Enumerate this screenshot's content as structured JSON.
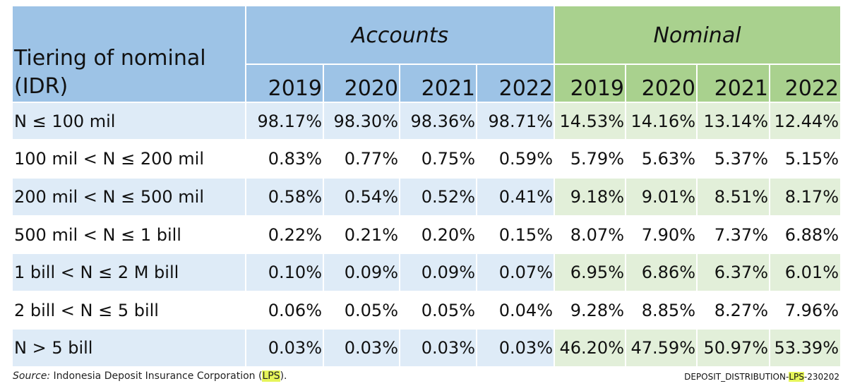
{
  "chart_data": {
    "type": "table",
    "header": {
      "tier_title": "Tiering of nominal (IDR)",
      "groups": [
        "Accounts",
        "Nominal"
      ],
      "years": [
        "2019",
        "2020",
        "2021",
        "2022"
      ]
    },
    "rows": [
      {
        "label": "N ≤ 100 mil",
        "accounts": [
          "98.17%",
          "98.30%",
          "98.36%",
          "98.71%"
        ],
        "nominal": [
          "14.53%",
          "14.16%",
          "13.14%",
          "12.44%"
        ]
      },
      {
        "label": "100 mil < N ≤ 200 mil",
        "accounts": [
          "0.83%",
          "0.77%",
          "0.75%",
          "0.59%"
        ],
        "nominal": [
          "5.79%",
          "5.63%",
          "5.37%",
          "5.15%"
        ]
      },
      {
        "label": "200 mil < N ≤ 500 mil",
        "accounts": [
          "0.58%",
          "0.54%",
          "0.52%",
          "0.41%"
        ],
        "nominal": [
          "9.18%",
          "9.01%",
          "8.51%",
          "8.17%"
        ]
      },
      {
        "label": "500 mil < N ≤ 1 bill",
        "accounts": [
          "0.22%",
          "0.21%",
          "0.20%",
          "0.15%"
        ],
        "nominal": [
          "8.07%",
          "7.90%",
          "7.37%",
          "6.88%"
        ]
      },
      {
        "label": "1 bill < N ≤ 2 M bill",
        "accounts": [
          "0.10%",
          "0.09%",
          "0.09%",
          "0.07%"
        ],
        "nominal": [
          "6.95%",
          "6.86%",
          "6.37%",
          "6.01%"
        ]
      },
      {
        "label": "2 bill < N ≤ 5 bill",
        "accounts": [
          "0.06%",
          "0.05%",
          "0.05%",
          "0.04%"
        ],
        "nominal": [
          "9.28%",
          "8.85%",
          "8.27%",
          "7.96%"
        ]
      },
      {
        "label": "N > 5 bill",
        "accounts": [
          "0.03%",
          "0.03%",
          "0.03%",
          "0.03%"
        ],
        "nominal": [
          "46.20%",
          "47.59%",
          "50.97%",
          "53.39%"
        ]
      }
    ]
  },
  "footer": {
    "source_prefix": "Source:",
    "source_text": " Indonesia Deposit Insurance Corporation (",
    "source_abbr": "LPS",
    "source_suffix": ").",
    "doc_id_prefix": "DEPOSIT_DISTRIBUTION-",
    "doc_id_abbr": "LPS",
    "doc_id_suffix": "-230202"
  },
  "colors": {
    "header_blue": "#9dc3e6",
    "header_green": "#a9d18e",
    "row_blue": "#deebf7",
    "row_green": "#e2efd9",
    "highlight": "#e6f55a"
  }
}
